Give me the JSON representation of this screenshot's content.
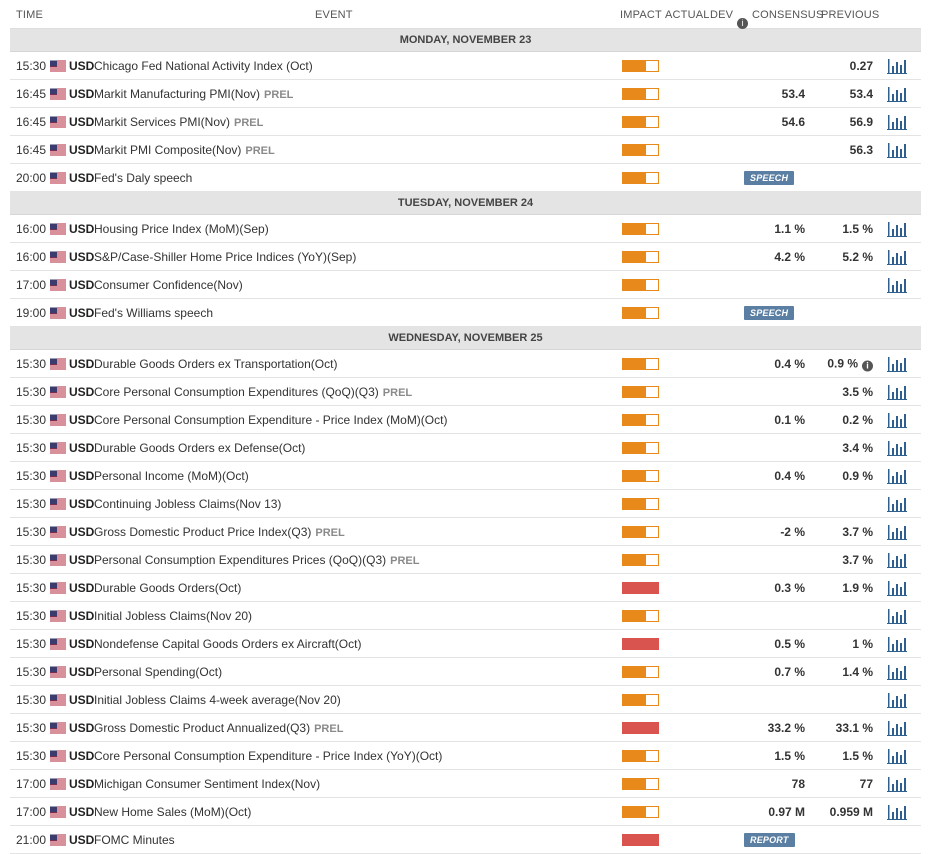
{
  "columns": {
    "time": "TIME",
    "event": "EVENT",
    "impact": "IMPACT",
    "actual": "ACTUAL",
    "dev": "DEV",
    "consensus": "CONSENSUS",
    "previous": "PREVIOUS"
  },
  "accent_colors": {
    "medium_impact": "#e8891c",
    "high_impact": "#d9534f",
    "tag": "#5b7fa3",
    "chart_icon": "#2f5f8f"
  },
  "days": [
    {
      "label": "MONDAY, NOVEMBER 23",
      "events": [
        {
          "time": "15:30",
          "currency": "USD",
          "name": "Chicago Fed National Activity Index (Oct)",
          "prel": "",
          "impact": "medium",
          "consensus": "",
          "previous": "0.27",
          "tag": "",
          "chart": true,
          "info": false
        },
        {
          "time": "16:45",
          "currency": "USD",
          "name": "Markit Manufacturing PMI(Nov)",
          "prel": "PREL",
          "impact": "medium",
          "consensus": "53.4",
          "previous": "53.4",
          "tag": "",
          "chart": true,
          "info": false
        },
        {
          "time": "16:45",
          "currency": "USD",
          "name": "Markit Services PMI(Nov)",
          "prel": "PREL",
          "impact": "medium",
          "consensus": "54.6",
          "previous": "56.9",
          "tag": "",
          "chart": true,
          "info": false
        },
        {
          "time": "16:45",
          "currency": "USD",
          "name": "Markit PMI Composite(Nov)",
          "prel": "PREL",
          "impact": "medium",
          "consensus": "",
          "previous": "56.3",
          "tag": "",
          "chart": true,
          "info": false
        },
        {
          "time": "20:00",
          "currency": "USD",
          "name": "Fed's Daly speech",
          "prel": "",
          "impact": "medium",
          "consensus": "",
          "previous": "",
          "tag": "SPEECH",
          "chart": false,
          "info": false
        }
      ]
    },
    {
      "label": "TUESDAY, NOVEMBER 24",
      "events": [
        {
          "time": "16:00",
          "currency": "USD",
          "name": "Housing Price Index (MoM)(Sep)",
          "prel": "",
          "impact": "medium",
          "consensus": "1.1 %",
          "previous": "1.5 %",
          "tag": "",
          "chart": true,
          "info": false
        },
        {
          "time": "16:00",
          "currency": "USD",
          "name": "S&P/Case-Shiller Home Price Indices (YoY)(Sep)",
          "prel": "",
          "impact": "medium",
          "consensus": "4.2 %",
          "previous": "5.2 %",
          "tag": "",
          "chart": true,
          "info": false
        },
        {
          "time": "17:00",
          "currency": "USD",
          "name": "Consumer Confidence(Nov)",
          "prel": "",
          "impact": "medium",
          "consensus": "",
          "previous": "",
          "tag": "",
          "chart": true,
          "info": false
        },
        {
          "time": "19:00",
          "currency": "USD",
          "name": "Fed's Williams speech",
          "prel": "",
          "impact": "medium",
          "consensus": "",
          "previous": "",
          "tag": "SPEECH",
          "chart": false,
          "info": false
        }
      ]
    },
    {
      "label": "WEDNESDAY, NOVEMBER 25",
      "events": [
        {
          "time": "15:30",
          "currency": "USD",
          "name": "Durable Goods Orders ex Transportation(Oct)",
          "prel": "",
          "impact": "medium",
          "consensus": "0.4 %",
          "previous": "0.9 %",
          "tag": "",
          "chart": true,
          "info": true
        },
        {
          "time": "15:30",
          "currency": "USD",
          "name": "Core Personal Consumption Expenditures (QoQ)(Q3)",
          "prel": "PREL",
          "impact": "medium",
          "consensus": "",
          "previous": "3.5 %",
          "tag": "",
          "chart": true,
          "info": false
        },
        {
          "time": "15:30",
          "currency": "USD",
          "name": "Core Personal Consumption Expenditure - Price Index (MoM)(Oct)",
          "prel": "",
          "impact": "medium",
          "consensus": "0.1 %",
          "previous": "0.2 %",
          "tag": "",
          "chart": true,
          "info": false
        },
        {
          "time": "15:30",
          "currency": "USD",
          "name": "Durable Goods Orders ex Defense(Oct)",
          "prel": "",
          "impact": "medium",
          "consensus": "",
          "previous": "3.4 %",
          "tag": "",
          "chart": true,
          "info": false
        },
        {
          "time": "15:30",
          "currency": "USD",
          "name": "Personal Income (MoM)(Oct)",
          "prel": "",
          "impact": "medium",
          "consensus": "0.4 %",
          "previous": "0.9 %",
          "tag": "",
          "chart": true,
          "info": false
        },
        {
          "time": "15:30",
          "currency": "USD",
          "name": "Continuing Jobless Claims(Nov 13)",
          "prel": "",
          "impact": "medium",
          "consensus": "",
          "previous": "",
          "tag": "",
          "chart": true,
          "info": false
        },
        {
          "time": "15:30",
          "currency": "USD",
          "name": "Gross Domestic Product Price Index(Q3)",
          "prel": "PREL",
          "impact": "medium",
          "consensus": "-2 %",
          "previous": "3.7 %",
          "tag": "",
          "chart": true,
          "info": false
        },
        {
          "time": "15:30",
          "currency": "USD",
          "name": "Personal Consumption Expenditures Prices (QoQ)(Q3)",
          "prel": "PREL",
          "impact": "medium",
          "consensus": "",
          "previous": "3.7 %",
          "tag": "",
          "chart": true,
          "info": false
        },
        {
          "time": "15:30",
          "currency": "USD",
          "name": "Durable Goods Orders(Oct)",
          "prel": "",
          "impact": "high",
          "consensus": "0.3 %",
          "previous": "1.9 %",
          "tag": "",
          "chart": true,
          "info": false
        },
        {
          "time": "15:30",
          "currency": "USD",
          "name": "Initial Jobless Claims(Nov 20)",
          "prel": "",
          "impact": "medium",
          "consensus": "",
          "previous": "",
          "tag": "",
          "chart": true,
          "info": false
        },
        {
          "time": "15:30",
          "currency": "USD",
          "name": "Nondefense Capital Goods Orders ex Aircraft(Oct)",
          "prel": "",
          "impact": "high",
          "consensus": "0.5 %",
          "previous": "1 %",
          "tag": "",
          "chart": true,
          "info": false
        },
        {
          "time": "15:30",
          "currency": "USD",
          "name": "Personal Spending(Oct)",
          "prel": "",
          "impact": "medium",
          "consensus": "0.7 %",
          "previous": "1.4 %",
          "tag": "",
          "chart": true,
          "info": false
        },
        {
          "time": "15:30",
          "currency": "USD",
          "name": "Initial Jobless Claims 4-week average(Nov 20)",
          "prel": "",
          "impact": "medium",
          "consensus": "",
          "previous": "",
          "tag": "",
          "chart": true,
          "info": false
        },
        {
          "time": "15:30",
          "currency": "USD",
          "name": "Gross Domestic Product Annualized(Q3)",
          "prel": "PREL",
          "impact": "high",
          "consensus": "33.2 %",
          "previous": "33.1 %",
          "tag": "",
          "chart": true,
          "info": false
        },
        {
          "time": "15:30",
          "currency": "USD",
          "name": "Core Personal Consumption Expenditure - Price Index (YoY)(Oct)",
          "prel": "",
          "impact": "medium",
          "consensus": "1.5 %",
          "previous": "1.5 %",
          "tag": "",
          "chart": true,
          "info": false
        },
        {
          "time": "17:00",
          "currency": "USD",
          "name": "Michigan Consumer Sentiment Index(Nov)",
          "prel": "",
          "impact": "medium",
          "consensus": "78",
          "previous": "77",
          "tag": "",
          "chart": true,
          "info": false
        },
        {
          "time": "17:00",
          "currency": "USD",
          "name": "New Home Sales (MoM)(Oct)",
          "prel": "",
          "impact": "medium",
          "consensus": "0.97 M",
          "previous": "0.959 M",
          "tag": "",
          "chart": true,
          "info": false
        },
        {
          "time": "21:00",
          "currency": "USD",
          "name": "FOMC Minutes",
          "prel": "",
          "impact": "high",
          "consensus": "",
          "previous": "",
          "tag": "REPORT",
          "chart": false,
          "info": false
        }
      ]
    }
  ]
}
